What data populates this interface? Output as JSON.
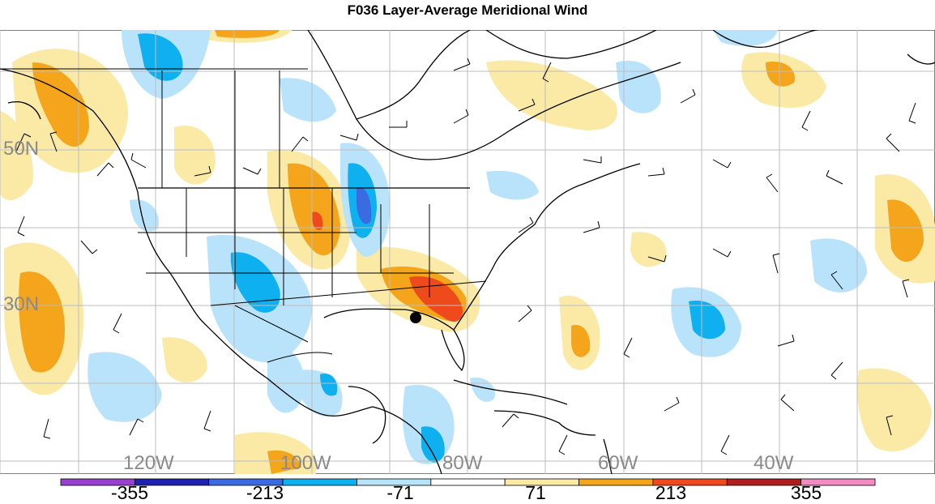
{
  "title": "F036 Layer-Average Meridional Wind",
  "grid_labels": {
    "latitudes": [
      "50N",
      "30N"
    ],
    "longitudes": [
      "120W",
      "100W",
      "80W",
      "60W",
      "40W"
    ]
  },
  "colorbar": {
    "labels": [
      "-355",
      "-213",
      "-71",
      "71",
      "213",
      "355"
    ],
    "colors": [
      "#9b3fd1",
      "#1f1fb0",
      "#3b6be0",
      "#0fb0f0",
      "#b9e3fa",
      "#ffffff",
      "#fbe9a6",
      "#f4a51c",
      "#ee4a1c",
      "#b01f1f",
      "#f28cc0"
    ]
  },
  "colors": {
    "strong_positive": "#ee4a1c",
    "positive": "#f4a51c",
    "weak_positive": "#fbe9a6",
    "weak_negative": "#b9e3fa",
    "negative": "#0fb0f0",
    "strong_negative": "#3b6be0",
    "storm_marker": "#000000"
  }
}
